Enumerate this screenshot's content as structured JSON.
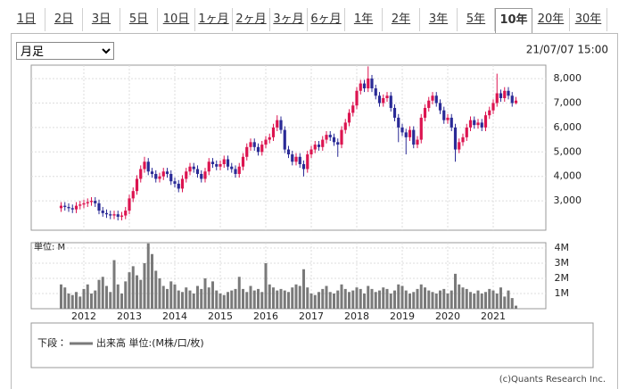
{
  "tabs": [
    "1日",
    "2日",
    "3日",
    "5日",
    "10日",
    "1ヶ月",
    "2ヶ月",
    "3ヶ月",
    "6ヶ月",
    "1年",
    "2年",
    "3年",
    "5年",
    "10年",
    "20年",
    "30年"
  ],
  "active_tab": 13,
  "period_select": "月足",
  "timestamp": "21/07/07 15:00",
  "chart_data": [
    {
      "type": "candlestick",
      "up_color": "#dc1450",
      "down_color": "#2a2a96",
      "grid": true,
      "ylim": [
        1800,
        8550
      ],
      "yticks": [
        {
          "value": 3000,
          "label": "3,000"
        },
        {
          "value": 4000,
          "label": "4,000"
        },
        {
          "value": 5000,
          "label": "5,000"
        },
        {
          "value": 6000,
          "label": "6,000"
        },
        {
          "value": 7000,
          "label": "7,000"
        },
        {
          "value": 8000,
          "label": "8,000"
        }
      ],
      "open": [
        2700,
        2800,
        2750,
        2700,
        2650,
        2800,
        2850,
        2900,
        2950,
        3000,
        2900,
        2600,
        2500,
        2450,
        2400,
        2450,
        2350,
        2400,
        2600,
        3100,
        3400,
        3900,
        4300,
        4600,
        4200,
        4100,
        3900,
        4000,
        4200,
        4100,
        3800,
        3700,
        3500,
        3900,
        4200,
        4400,
        4300,
        4100,
        3900,
        4200,
        4600,
        4500,
        4400,
        4500,
        4700,
        4400,
        4300,
        4100,
        4400,
        4800,
        5200,
        5400,
        5200,
        5000,
        5300,
        5500,
        5600,
        6000,
        6300,
        5900,
        5100,
        4900,
        4600,
        4800,
        4500,
        4300,
        4900,
        5100,
        5300,
        5200,
        5500,
        5700,
        5600,
        5400,
        5300,
        5900,
        6200,
        6600,
        6900,
        7500,
        7800,
        7600,
        8000,
        7600,
        7300,
        7000,
        7200,
        7300,
        6800,
        6400,
        6000,
        5800,
        5600,
        5900,
        5300,
        5500,
        6400,
        6800,
        7100,
        7300,
        7000,
        6700,
        6300,
        6400,
        6000,
        5100,
        5400,
        5600,
        6000,
        6300,
        6100,
        6200,
        6000,
        6500,
        6700,
        7000,
        7400,
        7200,
        7500,
        7300,
        7000
      ],
      "high": [
        2950,
        2950,
        2900,
        2850,
        2950,
        3000,
        3050,
        3100,
        3150,
        3150,
        3050,
        2750,
        2650,
        2600,
        2600,
        2600,
        2550,
        2750,
        3250,
        3550,
        4050,
        4450,
        4800,
        4750,
        4350,
        4250,
        4150,
        4350,
        4350,
        4250,
        3950,
        3850,
        4050,
        4350,
        4550,
        4550,
        4450,
        4250,
        4350,
        4750,
        4750,
        4650,
        4650,
        4850,
        4850,
        4550,
        4450,
        4550,
        4950,
        5350,
        5550,
        5550,
        5350,
        5450,
        5650,
        5750,
        6150,
        6500,
        6450,
        6050,
        5250,
        5050,
        4950,
        4950,
        4650,
        5050,
        5250,
        5450,
        5450,
        5650,
        5850,
        5850,
        5750,
        5550,
        6050,
        6350,
        6750,
        7050,
        7650,
        7950,
        7950,
        8500,
        8150,
        7750,
        7450,
        7350,
        7450,
        7450,
        6950,
        6550,
        6150,
        5950,
        6050,
        6050,
        5650,
        6550,
        6950,
        7250,
        7450,
        7450,
        7150,
        6850,
        6550,
        6550,
        6150,
        5550,
        5750,
        6150,
        6450,
        6450,
        6350,
        6350,
        6650,
        6850,
        7150,
        8200,
        7550,
        7650,
        7650,
        7450,
        7250
      ],
      "low": [
        2550,
        2600,
        2550,
        2500,
        2500,
        2650,
        2700,
        2750,
        2800,
        2750,
        2450,
        2350,
        2300,
        2250,
        2250,
        2200,
        2200,
        2250,
        2450,
        2950,
        3250,
        3750,
        4150,
        4050,
        3950,
        3750,
        3750,
        3850,
        3950,
        3650,
        3550,
        3350,
        3350,
        3750,
        4050,
        4150,
        3950,
        3750,
        3750,
        4050,
        4350,
        4250,
        4250,
        4350,
        4250,
        4150,
        3950,
        3950,
        4250,
        4650,
        5050,
        5050,
        4850,
        4850,
        5150,
        5350,
        5450,
        5850,
        5750,
        4950,
        4750,
        4450,
        4450,
        4350,
        4000,
        4150,
        4750,
        4950,
        5050,
        5050,
        5350,
        5450,
        5250,
        4800,
        5150,
        5750,
        6050,
        6450,
        6750,
        7350,
        7450,
        7450,
        7450,
        7150,
        6850,
        6850,
        7050,
        6650,
        6250,
        5400,
        5650,
        4900,
        5450,
        5150,
        5150,
        5350,
        6250,
        6650,
        6950,
        6850,
        6550,
        6150,
        6150,
        5850,
        4600,
        4950,
        5250,
        5450,
        5850,
        5950,
        5950,
        5850,
        5850,
        6350,
        6550,
        6850,
        7050,
        7050,
        7150,
        6850,
        6950
      ],
      "close": [
        2800,
        2750,
        2700,
        2650,
        2800,
        2850,
        2900,
        2950,
        3000,
        2900,
        2600,
        2500,
        2450,
        2400,
        2450,
        2350,
        2400,
        2600,
        3100,
        3400,
        3900,
        4300,
        4600,
        4200,
        4100,
        3900,
        4000,
        4200,
        4100,
        3800,
        3700,
        3500,
        3900,
        4200,
        4400,
        4300,
        4100,
        3900,
        4200,
        4600,
        4500,
        4400,
        4500,
        4700,
        4400,
        4300,
        4100,
        4400,
        4800,
        5200,
        5400,
        5200,
        5000,
        5300,
        5500,
        5600,
        6000,
        6300,
        5900,
        5100,
        4900,
        4600,
        4800,
        4500,
        4300,
        4900,
        5100,
        5300,
        5200,
        5500,
        5700,
        5600,
        5400,
        5300,
        5900,
        6200,
        6600,
        6900,
        7500,
        7800,
        7600,
        8000,
        7600,
        7300,
        7000,
        7200,
        7300,
        6800,
        6400,
        6000,
        5800,
        5600,
        5900,
        5300,
        5500,
        6400,
        6800,
        7100,
        7300,
        7000,
        6700,
        6300,
        6400,
        6000,
        5100,
        5400,
        5600,
        6000,
        6300,
        6100,
        6200,
        6000,
        6500,
        6700,
        7000,
        7400,
        7200,
        7500,
        7300,
        7000,
        7100
      ]
    },
    {
      "type": "bar",
      "unit_label": "単位: M",
      "color": "#7a7a7a",
      "grid": true,
      "ylim": [
        0,
        4.35
      ],
      "yticks": [
        {
          "value": 1,
          "label": "1M"
        },
        {
          "value": 2,
          "label": "2M"
        },
        {
          "value": 3,
          "label": "3M"
        },
        {
          "value": 4,
          "label": "4M"
        }
      ],
      "categories": [
        null,
        null,
        null,
        null,
        null,
        null,
        "2012",
        null,
        null,
        null,
        null,
        null,
        null,
        null,
        null,
        null,
        null,
        null,
        "2013",
        null,
        null,
        null,
        null,
        null,
        null,
        null,
        null,
        null,
        null,
        null,
        "2014",
        null,
        null,
        null,
        null,
        null,
        null,
        null,
        null,
        null,
        null,
        null,
        "2015",
        null,
        null,
        null,
        null,
        null,
        null,
        null,
        null,
        null,
        null,
        null,
        "2016",
        null,
        null,
        null,
        null,
        null,
        null,
        null,
        null,
        null,
        null,
        null,
        "2017",
        null,
        null,
        null,
        null,
        null,
        null,
        null,
        null,
        null,
        null,
        null,
        "2018",
        null,
        null,
        null,
        null,
        null,
        null,
        null,
        null,
        null,
        null,
        null,
        "2019",
        null,
        null,
        null,
        null,
        null,
        null,
        null,
        null,
        null,
        null,
        null,
        "2020",
        null,
        null,
        null,
        null,
        null,
        null,
        null,
        null,
        null,
        null,
        null,
        "2021",
        null,
        null,
        null,
        null,
        null,
        null
      ],
      "values": [
        1.6,
        1.4,
        1.0,
        0.9,
        1.1,
        0.8,
        1.3,
        1.6,
        1.0,
        1.2,
        1.9,
        2.1,
        1.5,
        1.1,
        3.2,
        1.6,
        1.0,
        1.8,
        2.4,
        2.8,
        2.2,
        1.9,
        3.0,
        4.3,
        3.6,
        2.5,
        2.0,
        1.5,
        1.3,
        1.8,
        1.6,
        1.2,
        1.1,
        1.4,
        1.2,
        1.0,
        1.5,
        1.3,
        2.0,
        1.4,
        1.8,
        1.2,
        1.0,
        0.9,
        1.1,
        1.2,
        1.3,
        2.1,
        1.3,
        1.1,
        1.5,
        1.2,
        1.3,
        1.1,
        3.0,
        1.6,
        1.4,
        1.2,
        1.3,
        1.2,
        1.1,
        1.4,
        1.6,
        1.5,
        2.6,
        1.4,
        1.0,
        0.9,
        1.1,
        1.3,
        1.5,
        1.1,
        1.0,
        1.2,
        1.6,
        1.3,
        1.1,
        1.2,
        1.4,
        1.3,
        1.0,
        1.5,
        1.3,
        1.1,
        1.2,
        1.4,
        1.3,
        1.0,
        1.2,
        1.6,
        1.5,
        1.2,
        1.0,
        1.1,
        1.3,
        1.6,
        1.4,
        1.2,
        1.1,
        1.0,
        1.2,
        1.3,
        1.0,
        1.2,
        2.3,
        1.6,
        1.4,
        1.3,
        1.1,
        1.0,
        1.2,
        1.0,
        1.1,
        1.3,
        1.2,
        1.0,
        1.4,
        0.8,
        1.2,
        0.7,
        0.2
      ]
    }
  ],
  "legend": {
    "prefix": "下段：",
    "label": "出来高 単位:(M株/口/枚)"
  },
  "copyright": "(c)Quants Research Inc."
}
